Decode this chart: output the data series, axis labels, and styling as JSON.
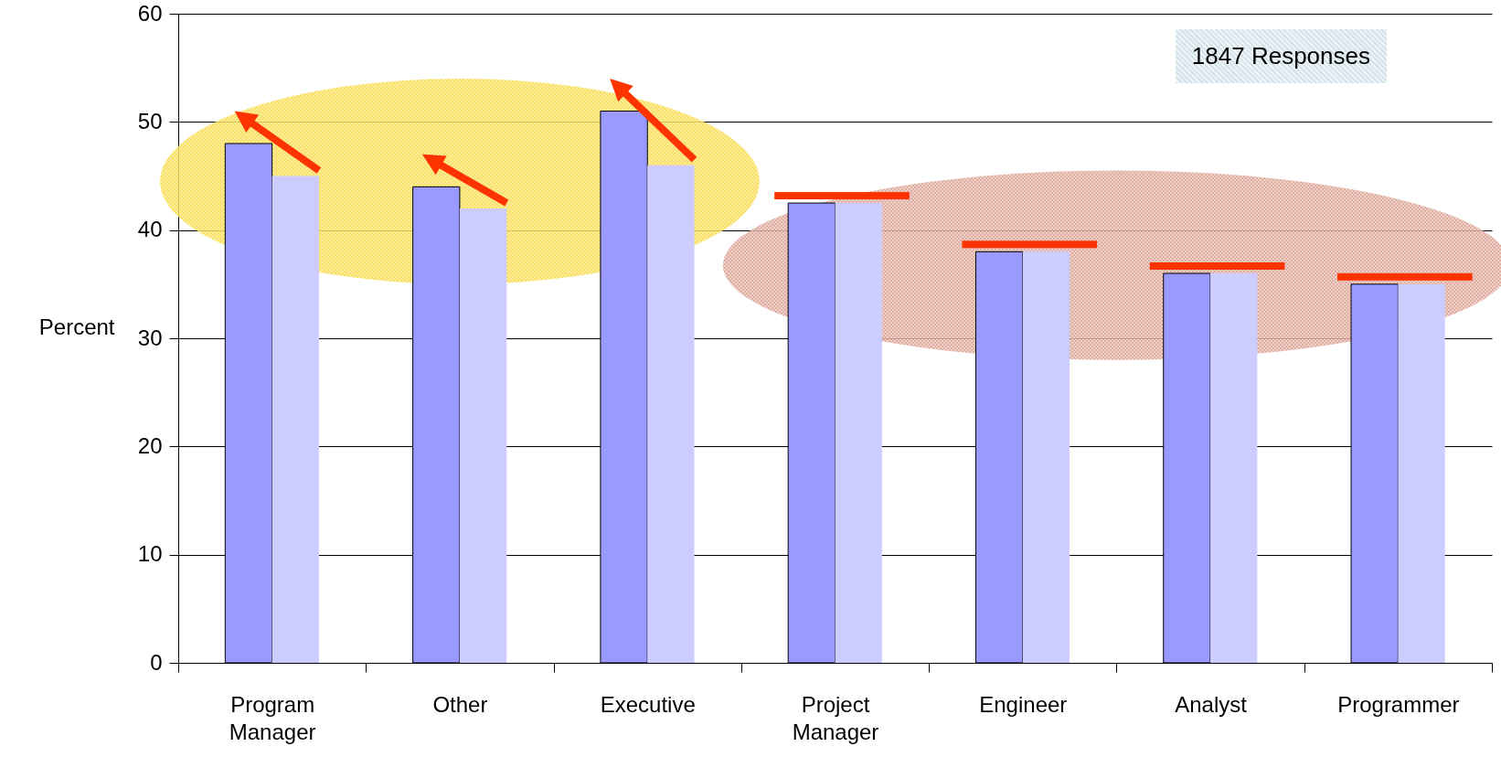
{
  "chart_data": {
    "type": "bar",
    "categories": [
      "Program Manager",
      "Other",
      "Executive",
      "Project Manager",
      "Engineer",
      "Analyst",
      "Programmer"
    ],
    "series": [
      {
        "color": "#9999ff",
        "values": [
          48,
          44,
          51,
          42.5,
          38,
          36,
          35
        ]
      },
      {
        "color": "#ccccff",
        "values": [
          45,
          42,
          46,
          42.5,
          38,
          36,
          35
        ]
      }
    ],
    "ylabel": "Percent",
    "ylim": [
      0,
      60
    ],
    "yticks": [
      0,
      10,
      20,
      30,
      40,
      50,
      60
    ],
    "grid": "y",
    "annotations": [
      "1847 Responses"
    ]
  }
}
